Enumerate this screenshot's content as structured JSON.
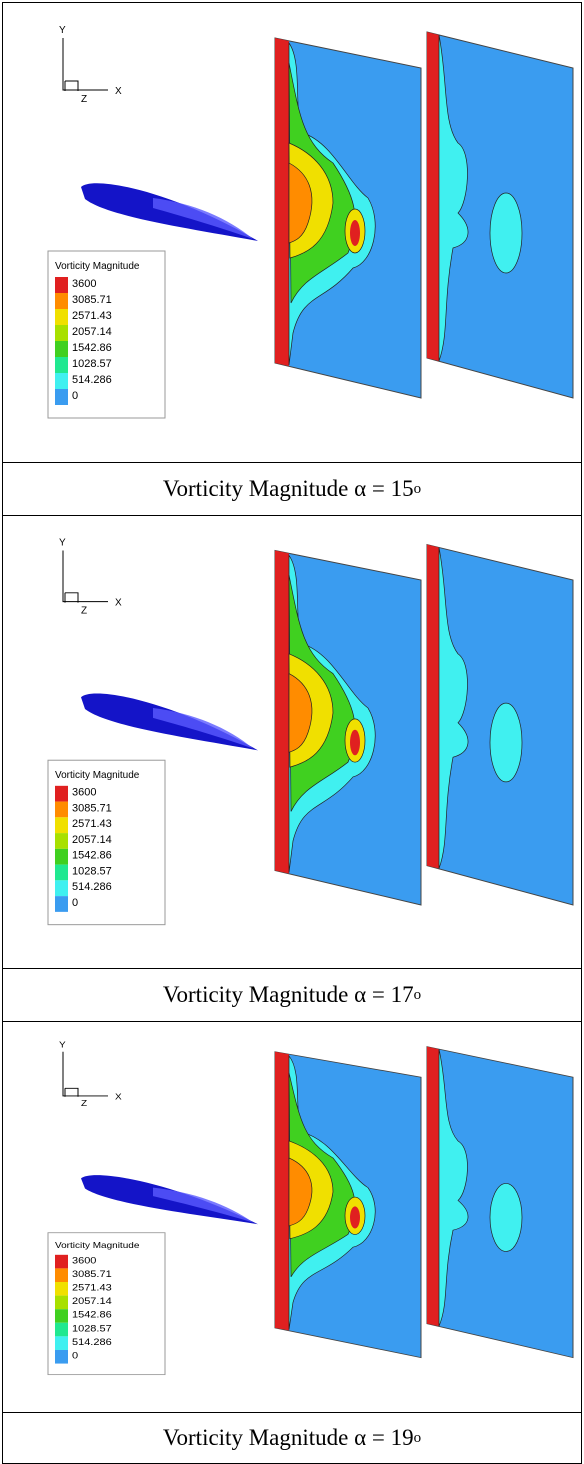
{
  "panels": [
    {
      "axis_labels": {
        "y": "Y",
        "x": "X",
        "z": "Z"
      },
      "legend": {
        "title": "Vorticity Magnitude",
        "levels": [
          "3600",
          "3085.71",
          "2571.43",
          "2057.14",
          "1542.86",
          "1028.57",
          "514.286",
          "0"
        ]
      },
      "caption": {
        "text": "Vorticity Magnitude α = 15",
        "superscript": "o"
      }
    },
    {
      "axis_labels": {
        "y": "Y",
        "x": "X",
        "z": "Z"
      },
      "legend": {
        "title": "Vorticity Magnitude",
        "levels": [
          "3600",
          "3085.71",
          "2571.43",
          "2057.14",
          "1542.86",
          "1028.57",
          "514.286",
          "0"
        ]
      },
      "caption": {
        "text": "Vorticity Magnitude α = 17",
        "superscript": "o"
      }
    },
    {
      "axis_labels": {
        "y": "Y",
        "x": "X",
        "z": "Z"
      },
      "legend": {
        "title": "Vorticity Magnitude",
        "levels": [
          "3600",
          "3085.71",
          "2571.43",
          "2057.14",
          "1542.86",
          "1028.57",
          "514.286",
          "0"
        ]
      },
      "caption": {
        "text": "Vorticity Magnitude α = 19",
        "superscript": "o"
      }
    }
  ]
}
